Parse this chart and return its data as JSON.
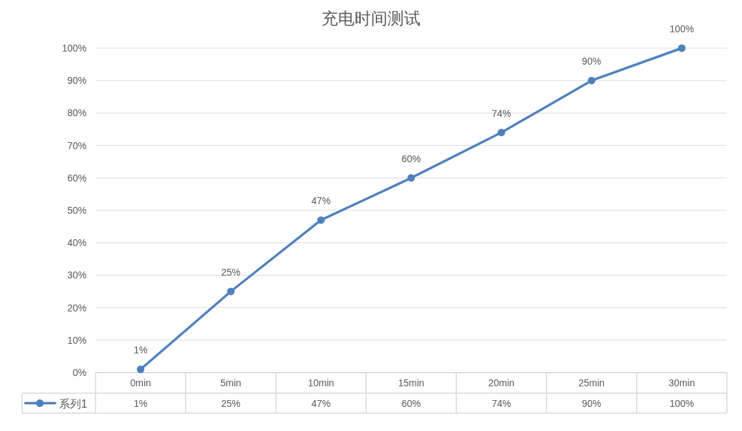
{
  "chart_data": {
    "type": "line",
    "title": "充电时间测试",
    "categories": [
      "0min",
      "5min",
      "10min",
      "15min",
      "20min",
      "25min",
      "30min"
    ],
    "series": [
      {
        "name": "系列1",
        "color": "#4f81bd",
        "values": [
          1,
          25,
          47,
          60,
          74,
          90,
          100
        ],
        "value_labels": [
          "1%",
          "25%",
          "47%",
          "60%",
          "74%",
          "90%",
          "100%"
        ]
      }
    ],
    "ylim": [
      0,
      100
    ],
    "yticks": [
      {
        "value": 0,
        "label": "0%"
      },
      {
        "value": 10,
        "label": "10%"
      },
      {
        "value": 20,
        "label": "20%"
      },
      {
        "value": 30,
        "label": "30%"
      },
      {
        "value": 40,
        "label": "40%"
      },
      {
        "value": 50,
        "label": "50%"
      },
      {
        "value": 60,
        "label": "60%"
      },
      {
        "value": 70,
        "label": "70%"
      },
      {
        "value": 80,
        "label": "80%"
      },
      {
        "value": 90,
        "label": "90%"
      },
      {
        "value": 100,
        "label": "100%"
      }
    ],
    "grid": "y",
    "legend": "bottom",
    "marker": "circle",
    "line_style": "solid"
  }
}
